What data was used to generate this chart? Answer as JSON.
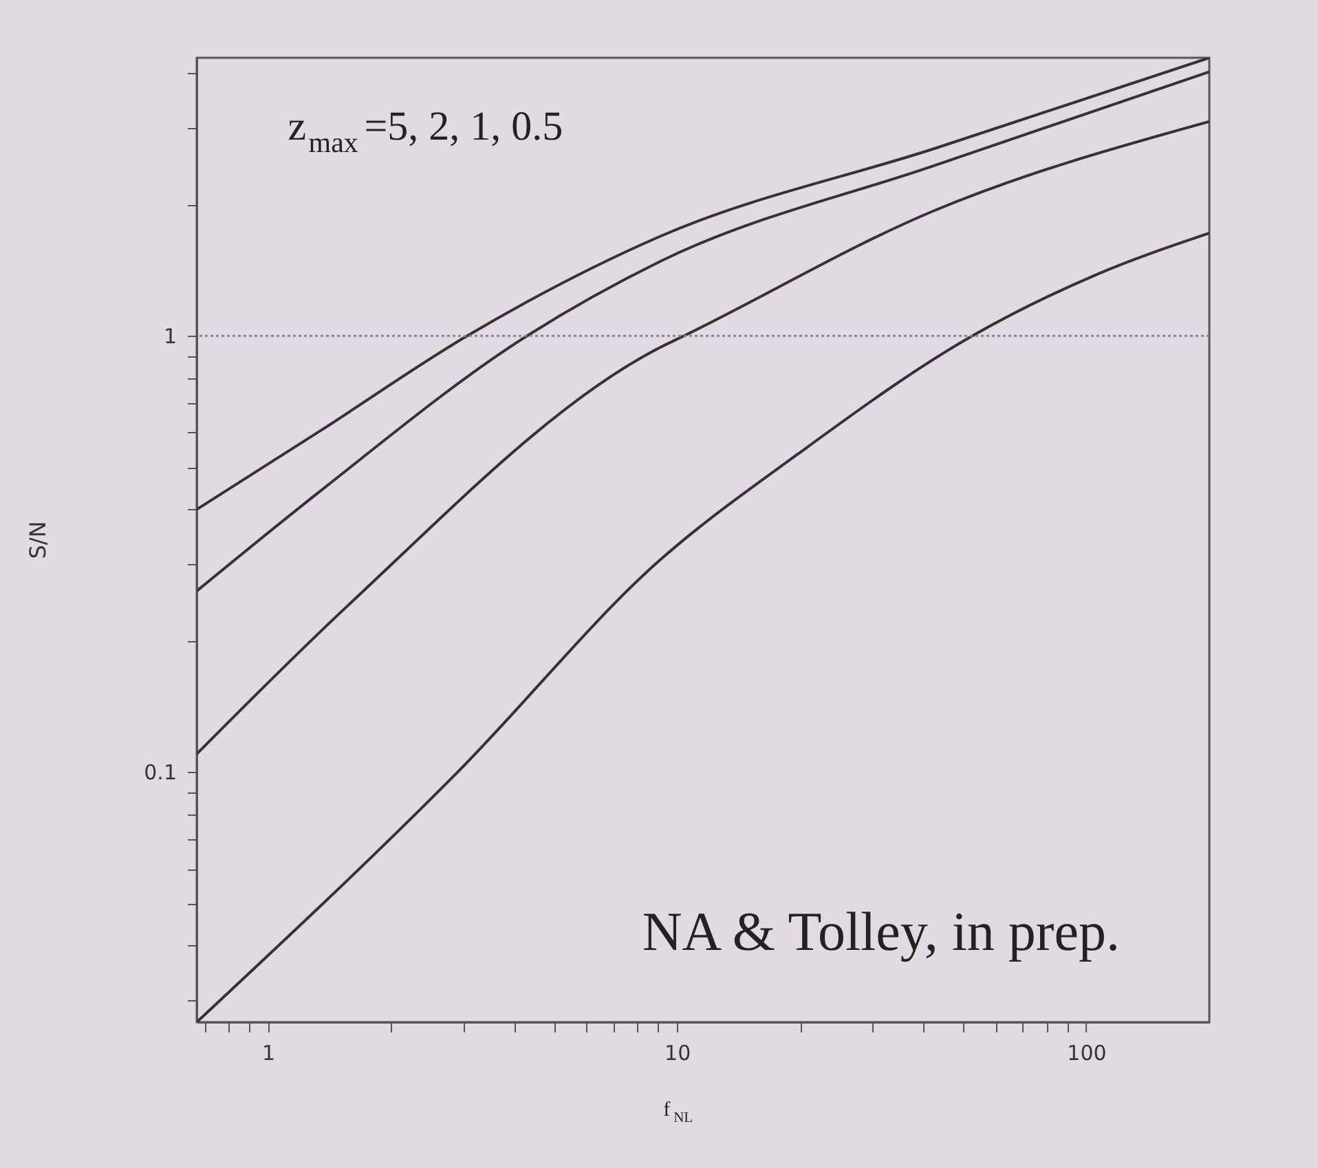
{
  "chart_data": {
    "type": "line",
    "xlabel": "f$_{NL}$",
    "ylabel": "S/N",
    "log": "xy",
    "grid": false,
    "marker": "none",
    "line_style": "solid",
    "xlim": [
      0.67,
      200
    ],
    "ylim": [
      0.0267,
      4.34
    ],
    "xticks": [
      {
        "value": 0.7,
        "label": null
      },
      {
        "value": 0.8,
        "label": null
      },
      {
        "value": 0.9,
        "label": null
      },
      1,
      {
        "value": 2,
        "label": null
      },
      {
        "value": 3,
        "label": null
      },
      {
        "value": 4,
        "label": null
      },
      {
        "value": 5,
        "label": null
      },
      {
        "value": 6,
        "label": null
      },
      {
        "value": 7,
        "label": null
      },
      {
        "value": 8,
        "label": null
      },
      {
        "value": 9,
        "label": null
      },
      10,
      {
        "value": 20,
        "label": null
      },
      {
        "value": 30,
        "label": null
      },
      {
        "value": 40,
        "label": null
      },
      {
        "value": 50,
        "label": null
      },
      {
        "value": 60,
        "label": null
      },
      {
        "value": 70,
        "label": null
      },
      {
        "value": 80,
        "label": null
      },
      {
        "value": 90,
        "label": null
      },
      100
    ],
    "yticks": [
      {
        "value": 0.03,
        "label": null
      },
      {
        "value": 0.04,
        "label": null
      },
      {
        "value": 0.05,
        "label": null
      },
      {
        "value": 0.06,
        "label": null
      },
      {
        "value": 0.07,
        "label": null
      },
      {
        "value": 0.08,
        "label": null
      },
      {
        "value": 0.09,
        "label": null
      },
      0.1,
      {
        "value": 0.2,
        "label": null
      },
      {
        "value": 0.3,
        "label": null
      },
      {
        "value": 0.4,
        "label": null
      },
      {
        "value": 0.5,
        "label": null
      },
      {
        "value": 0.6,
        "label": null
      },
      {
        "value": 0.7,
        "label": null
      },
      {
        "value": 0.8,
        "label": null
      },
      {
        "value": 0.9,
        "label": null
      },
      1,
      {
        "value": 2,
        "label": null
      },
      {
        "value": 3,
        "label": null
      },
      {
        "value": 4,
        "label": null
      }
    ],
    "ref_lines": [
      {
        "axis": "y",
        "value": 1,
        "label": null,
        "color": "#8a8490",
        "line_style": "dotted"
      }
    ],
    "annotations": [
      "z$_{max}$=5, 2, 1, 0.5",
      "NA & Tolley, in prep."
    ],
    "series": [
      {
        "color": "#333333",
        "x": [
          0.67,
          1.34,
          3.07,
          9.08,
          42.7,
          200
        ],
        "values": [
          0.4,
          0.605,
          1.0,
          1.69,
          2.69,
          4.34
        ]
      },
      {
        "color": "#333333",
        "x": [
          0.67,
          1.34,
          4.3,
          9.08,
          42.7,
          200
        ],
        "values": [
          0.26,
          0.44,
          1.0,
          1.48,
          2.46,
          4.03
        ]
      },
      {
        "color": "#333333",
        "x": [
          0.67,
          1.57,
          9.08,
          10.4,
          42.7,
          200
        ],
        "values": [
          0.11,
          0.241,
          0.94,
          1.0,
          1.94,
          3.1
        ]
      },
      {
        "color": "#333333",
        "x": [
          0.67,
          2.91,
          9.08,
          19.7,
          52.7,
          105.6,
          200
        ],
        "values": [
          0.0267,
          0.1,
          0.306,
          0.535,
          1.0,
          1.38,
          1.72
        ]
      }
    ]
  }
}
